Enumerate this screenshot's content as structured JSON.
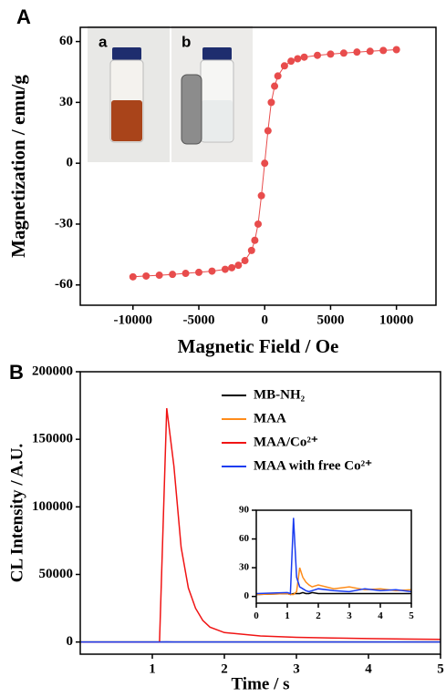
{
  "chart_data": [
    {
      "type": "scatter",
      "annotations": [
        "A",
        "a",
        "b"
      ],
      "xlabel": "Magnetic Field / Oe",
      "ylabel": "Magnetization / emu/g",
      "x": [
        -10000,
        -9000,
        -8000,
        -7000,
        -6000,
        -5000,
        -4000,
        -3000,
        -2500,
        -2000,
        -1500,
        -1000,
        -750,
        -500,
        -250,
        0,
        250,
        500,
        750,
        1000,
        1500,
        2000,
        2500,
        3000,
        4000,
        5000,
        6000,
        7000,
        8000,
        9000,
        10000
      ],
      "values": [
        -56,
        -55.6,
        -55.2,
        -54.8,
        -54.3,
        -53.8,
        -53.2,
        -52.3,
        -51.5,
        -50.3,
        -48,
        -43,
        -38,
        -30,
        -16,
        0,
        16,
        30,
        38,
        43,
        48,
        50.3,
        51.5,
        52.3,
        53.2,
        53.8,
        54.3,
        54.8,
        55.2,
        55.6,
        56
      ],
      "color": "#e84c4c",
      "xlim": [
        -14000,
        13000
      ],
      "xticks": [
        -10000,
        -5000,
        0,
        5000,
        10000
      ],
      "ylim": [
        -70,
        67
      ],
      "yticks": [
        -60,
        -30,
        0,
        30,
        60
      ]
    },
    {
      "type": "line",
      "annotations": [
        "B"
      ],
      "xlabel": "Time / s",
      "ylabel": "CL Intensity / A.U.",
      "x": [
        0,
        1,
        1.1,
        1.2,
        1.3,
        1.4,
        1.5,
        1.6,
        1.7,
        1.8,
        2,
        2.5,
        3,
        3.5,
        4,
        4.5,
        5
      ],
      "series": [
        {
          "name": "MB-NH₂",
          "color": "#000000",
          "values": [
            2,
            3,
            2,
            3,
            3,
            3,
            4,
            3,
            3,
            4,
            3,
            3,
            3,
            3,
            3,
            3,
            3
          ]
        },
        {
          "name": "MAA",
          "color": "#ff8c1a",
          "values": [
            2,
            3,
            2,
            2,
            5,
            30,
            20,
            15,
            12,
            10,
            12,
            8,
            10,
            7,
            8,
            6,
            7
          ]
        },
        {
          "name": "MAA/Co²⁺",
          "color": "#f01414",
          "values": [
            0,
            0,
            0,
            173000,
            130000,
            70000,
            40000,
            25000,
            16000,
            11000,
            7000,
            4500,
            3500,
            3000,
            2500,
            2200,
            2000
          ]
        },
        {
          "name": "MAA with free Co²⁺",
          "color": "#1a3cf0",
          "values": [
            3,
            4,
            3,
            82,
            20,
            10,
            8,
            6,
            5,
            6,
            8,
            6,
            5,
            8,
            6,
            7,
            5
          ]
        }
      ],
      "legend": "upper right",
      "xlim": [
        0,
        5
      ],
      "xticks": [
        1,
        2,
        3,
        4,
        5
      ],
      "ylim": [
        -9000,
        200000
      ],
      "yticks": [
        0,
        50000,
        100000,
        150000,
        200000
      ]
    },
    {
      "type": "line",
      "x": [
        0,
        1,
        1.1,
        1.2,
        1.3,
        1.4,
        1.5,
        1.6,
        1.7,
        1.8,
        2,
        2.5,
        3,
        3.5,
        4,
        4.5,
        5
      ],
      "series": [
        {
          "color": "#000000",
          "values": [
            2,
            3,
            2,
            3,
            3,
            3,
            4,
            3,
            3,
            4,
            3,
            3,
            3,
            3,
            3,
            3,
            3
          ]
        },
        {
          "color": "#ff8c1a",
          "values": [
            2,
            3,
            2,
            2,
            5,
            30,
            20,
            15,
            12,
            10,
            12,
            8,
            10,
            7,
            8,
            6,
            7
          ]
        },
        {
          "color": "#1a3cf0",
          "values": [
            3,
            4,
            3,
            82,
            20,
            10,
            8,
            6,
            5,
            6,
            8,
            6,
            5,
            8,
            6,
            7,
            5
          ]
        }
      ],
      "xlim": [
        0,
        5
      ],
      "xticks": [
        0,
        1,
        2,
        3,
        4,
        5
      ],
      "ylim": [
        -7,
        90
      ],
      "yticks": [
        0,
        30,
        60,
        90
      ]
    }
  ]
}
